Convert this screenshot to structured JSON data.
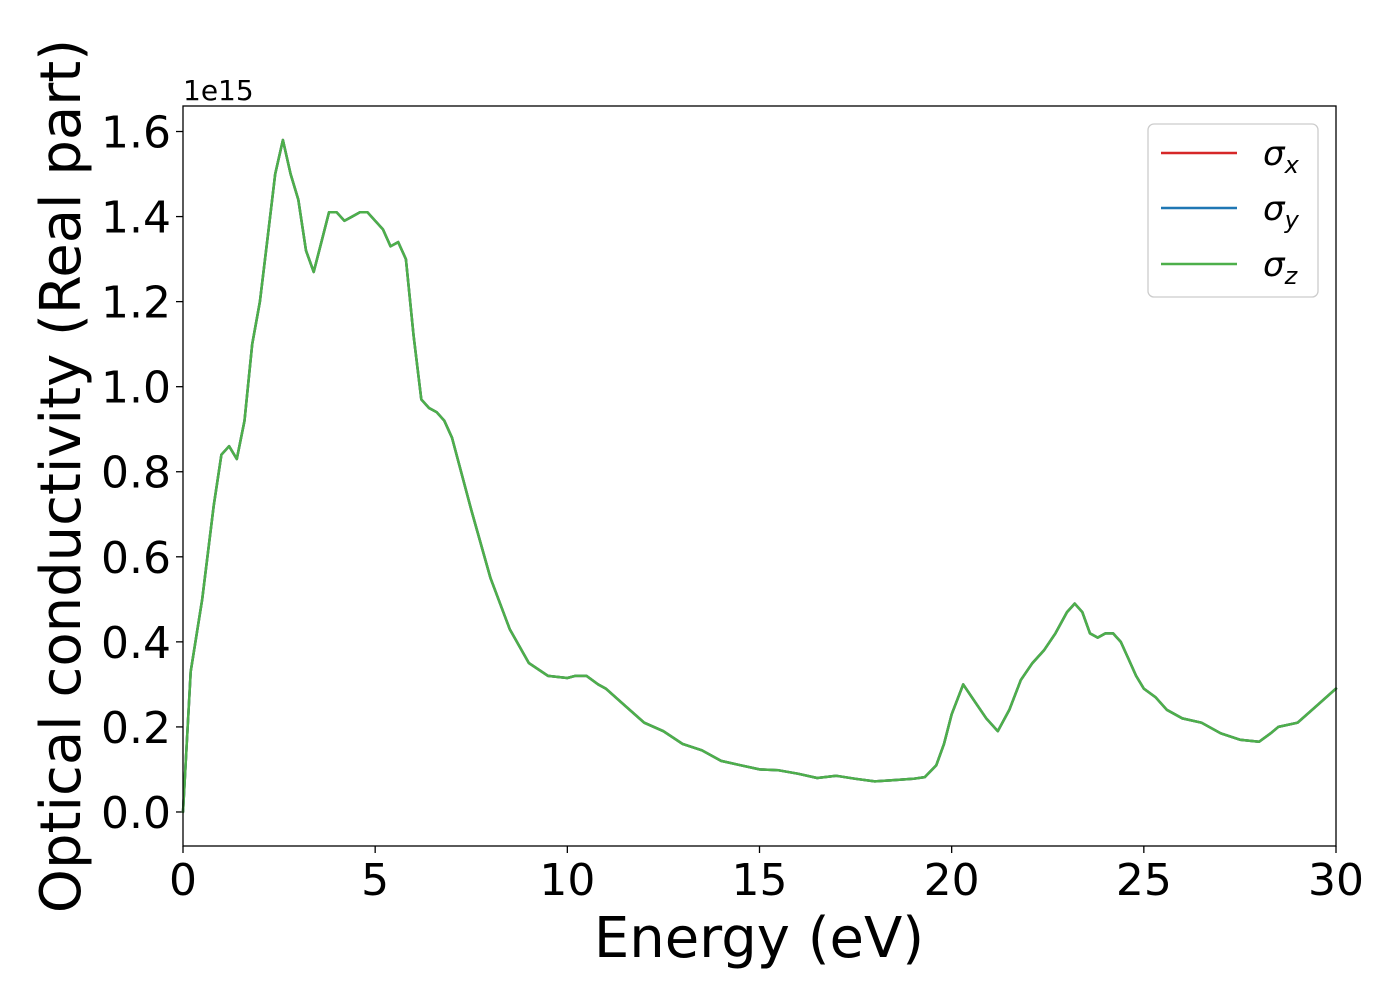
{
  "chart_data": {
    "type": "line",
    "title": "",
    "xlabel": "Energy (eV)",
    "ylabel": "Optical conductivity (Real part)",
    "y_offset_text": "1e15",
    "y_scale": 1000000000000000.0,
    "xlim": [
      0,
      30
    ],
    "ylim": [
      -0.08,
      1.66
    ],
    "xticks": [
      0,
      5,
      10,
      15,
      20,
      25,
      30
    ],
    "xtick_labels": [
      "0",
      "5",
      "10",
      "15",
      "20",
      "25",
      "30"
    ],
    "yticks": [
      0.0,
      0.2,
      0.4,
      0.6,
      0.8,
      1.0,
      1.2,
      1.4,
      1.6
    ],
    "ytick_labels": [
      "0.0",
      "0.2",
      "0.4",
      "0.6",
      "0.8",
      "1.0",
      "1.2",
      "1.4",
      "1.6"
    ],
    "grid": false,
    "legend_position": "top-right",
    "x": [
      0,
      0.2,
      0.5,
      0.8,
      1.0,
      1.2,
      1.4,
      1.6,
      1.8,
      2.0,
      2.2,
      2.4,
      2.6,
      2.8,
      3.0,
      3.2,
      3.4,
      3.6,
      3.8,
      4.0,
      4.2,
      4.4,
      4.6,
      4.8,
      5.0,
      5.2,
      5.4,
      5.6,
      5.8,
      6.0,
      6.2,
      6.4,
      6.6,
      6.8,
      7.0,
      7.5,
      8.0,
      8.5,
      9.0,
      9.5,
      10.0,
      10.2,
      10.5,
      10.8,
      11.0,
      11.5,
      12.0,
      12.5,
      13.0,
      13.5,
      14.0,
      14.5,
      15.0,
      15.5,
      16.0,
      16.5,
      17.0,
      17.5,
      18.0,
      18.5,
      19.0,
      19.3,
      19.6,
      19.8,
      20.0,
      20.3,
      20.6,
      20.9,
      21.2,
      21.5,
      21.8,
      22.1,
      22.4,
      22.7,
      23.0,
      23.2,
      23.4,
      23.6,
      23.8,
      24.0,
      24.2,
      24.4,
      24.6,
      24.8,
      25.0,
      25.3,
      25.6,
      26.0,
      26.5,
      27.0,
      27.5,
      28.0,
      28.3,
      28.5,
      29.0,
      29.5,
      30.0
    ],
    "series": [
      {
        "name": "σx",
        "color": "#d62728",
        "values": [
          0.0,
          0.33,
          0.5,
          0.72,
          0.84,
          0.86,
          0.83,
          0.92,
          1.1,
          1.2,
          1.35,
          1.5,
          1.58,
          1.5,
          1.44,
          1.32,
          1.27,
          1.34,
          1.41,
          1.41,
          1.39,
          1.4,
          1.41,
          1.41,
          1.39,
          1.37,
          1.33,
          1.34,
          1.3,
          1.12,
          0.97,
          0.95,
          0.94,
          0.92,
          0.88,
          0.71,
          0.55,
          0.43,
          0.35,
          0.32,
          0.315,
          0.32,
          0.32,
          0.3,
          0.29,
          0.25,
          0.21,
          0.19,
          0.16,
          0.145,
          0.12,
          0.11,
          0.1,
          0.098,
          0.09,
          0.08,
          0.085,
          0.078,
          0.072,
          0.075,
          0.078,
          0.082,
          0.11,
          0.16,
          0.23,
          0.3,
          0.26,
          0.22,
          0.19,
          0.24,
          0.31,
          0.35,
          0.38,
          0.42,
          0.47,
          0.49,
          0.47,
          0.42,
          0.41,
          0.42,
          0.42,
          0.4,
          0.36,
          0.32,
          0.29,
          0.27,
          0.24,
          0.22,
          0.21,
          0.185,
          0.17,
          0.165,
          0.185,
          0.2,
          0.21,
          0.25,
          0.29
        ]
      },
      {
        "name": "σy",
        "color": "#1f77b4",
        "values": [
          0.0,
          0.33,
          0.5,
          0.72,
          0.84,
          0.86,
          0.83,
          0.92,
          1.1,
          1.2,
          1.35,
          1.5,
          1.58,
          1.5,
          1.44,
          1.32,
          1.27,
          1.34,
          1.41,
          1.41,
          1.39,
          1.4,
          1.41,
          1.41,
          1.39,
          1.37,
          1.33,
          1.34,
          1.3,
          1.12,
          0.97,
          0.95,
          0.94,
          0.92,
          0.88,
          0.71,
          0.55,
          0.43,
          0.35,
          0.32,
          0.315,
          0.32,
          0.32,
          0.3,
          0.29,
          0.25,
          0.21,
          0.19,
          0.16,
          0.145,
          0.12,
          0.11,
          0.1,
          0.098,
          0.09,
          0.08,
          0.085,
          0.078,
          0.072,
          0.075,
          0.078,
          0.082,
          0.11,
          0.16,
          0.23,
          0.3,
          0.26,
          0.22,
          0.19,
          0.24,
          0.31,
          0.35,
          0.38,
          0.42,
          0.47,
          0.49,
          0.47,
          0.42,
          0.41,
          0.42,
          0.42,
          0.4,
          0.36,
          0.32,
          0.29,
          0.27,
          0.24,
          0.22,
          0.21,
          0.185,
          0.17,
          0.165,
          0.185,
          0.2,
          0.21,
          0.25,
          0.29
        ]
      },
      {
        "name": "σz",
        "color": "#4daf4a",
        "values": [
          0.0,
          0.33,
          0.5,
          0.72,
          0.84,
          0.86,
          0.83,
          0.92,
          1.1,
          1.2,
          1.35,
          1.5,
          1.58,
          1.5,
          1.44,
          1.32,
          1.27,
          1.34,
          1.41,
          1.41,
          1.39,
          1.4,
          1.41,
          1.41,
          1.39,
          1.37,
          1.33,
          1.34,
          1.3,
          1.12,
          0.97,
          0.95,
          0.94,
          0.92,
          0.88,
          0.71,
          0.55,
          0.43,
          0.35,
          0.32,
          0.315,
          0.32,
          0.32,
          0.3,
          0.29,
          0.25,
          0.21,
          0.19,
          0.16,
          0.145,
          0.12,
          0.11,
          0.1,
          0.098,
          0.09,
          0.08,
          0.085,
          0.078,
          0.072,
          0.075,
          0.078,
          0.082,
          0.11,
          0.16,
          0.23,
          0.3,
          0.26,
          0.22,
          0.19,
          0.24,
          0.31,
          0.35,
          0.38,
          0.42,
          0.47,
          0.49,
          0.47,
          0.42,
          0.41,
          0.42,
          0.42,
          0.4,
          0.36,
          0.32,
          0.29,
          0.27,
          0.24,
          0.22,
          0.21,
          0.185,
          0.17,
          0.165,
          0.185,
          0.2,
          0.21,
          0.25,
          0.29
        ]
      }
    ],
    "legend": [
      {
        "symbol": "σ",
        "sub": "x",
        "color": "#d62728"
      },
      {
        "symbol": "σ",
        "sub": "y",
        "color": "#1f77b4"
      },
      {
        "symbol": "σ",
        "sub": "z",
        "color": "#4daf4a"
      }
    ]
  }
}
